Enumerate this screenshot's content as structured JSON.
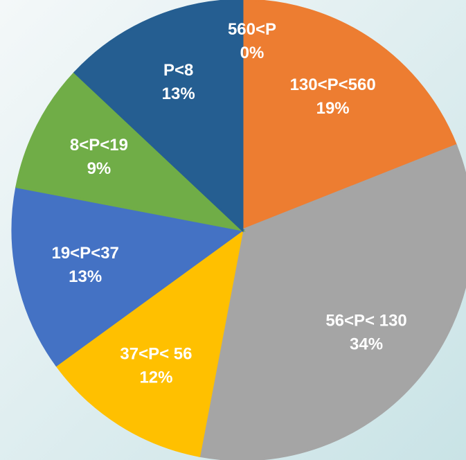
{
  "chart_data": {
    "type": "pie",
    "categories": [
      "560<P",
      "130<P<560",
      "56<P< 130",
      "37<P< 56",
      "19<P<37",
      "8<P<19",
      "P<8"
    ],
    "values": [
      0,
      19,
      34,
      12,
      13,
      9,
      13
    ],
    "value_labels": [
      "0%",
      "19%",
      "34%",
      "12%",
      "13%",
      "9%",
      "13%"
    ],
    "colors": [
      "#5b9bd5",
      "#ed7d31",
      "#a5a5a5",
      "#ffc000",
      "#4472c4",
      "#70ad47",
      "#255e91"
    ]
  }
}
